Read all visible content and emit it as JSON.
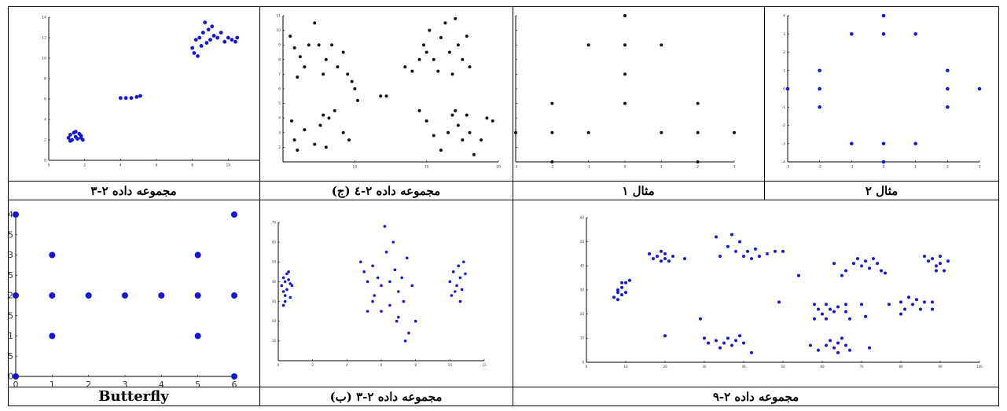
{
  "colors": {
    "blue": "#1515d8",
    "black": "#111111",
    "border": "#000000",
    "watermark": "#d9d9d9"
  },
  "captions": {
    "c1": "مجموعه داده ۲-۳",
    "c2": "مجموعه داده ۲-٤ (ج)",
    "c3": "مثال ۱",
    "c4": "مثال ۲",
    "c5": "Butterfly",
    "c6": "مجموعه داده ۲-۳ (ب)",
    "c7": "مجموعه داده ۲-۹"
  },
  "chart_data": [
    {
      "id": "ds23",
      "type": "scatter",
      "color": "blue",
      "xlim": [
        0,
        12
      ],
      "ylim": [
        0,
        14
      ],
      "xticks": [
        0,
        2,
        4,
        6,
        8,
        10,
        12
      ],
      "yticks": [
        0,
        2,
        4,
        6,
        8,
        10,
        12,
        14
      ],
      "points": [
        [
          1.1,
          2.2
        ],
        [
          1.2,
          2.5
        ],
        [
          1.3,
          2.0
        ],
        [
          1.4,
          2.7
        ],
        [
          1.5,
          2.3
        ],
        [
          1.6,
          2.1
        ],
        [
          1.7,
          2.6
        ],
        [
          1.8,
          2.2
        ],
        [
          1.9,
          2.0
        ],
        [
          1.2,
          1.9
        ],
        [
          1.5,
          2.8
        ],
        [
          1.8,
          2.4
        ],
        [
          4.0,
          6.1
        ],
        [
          4.3,
          6.1
        ],
        [
          4.6,
          6.1
        ],
        [
          4.9,
          6.2
        ],
        [
          5.1,
          6.3
        ],
        [
          8.0,
          11.0
        ],
        [
          8.1,
          10.5
        ],
        [
          8.2,
          11.8
        ],
        [
          8.3,
          10.2
        ],
        [
          8.4,
          12.0
        ],
        [
          8.5,
          11.2
        ],
        [
          8.6,
          12.5
        ],
        [
          8.7,
          13.5
        ],
        [
          8.8,
          11.5
        ],
        [
          8.9,
          12.8
        ],
        [
          9.0,
          11.8
        ],
        [
          9.2,
          12.2
        ],
        [
          9.4,
          12.0
        ],
        [
          9.6,
          12.5
        ],
        [
          9.8,
          11.6
        ],
        [
          10.0,
          12.0
        ],
        [
          10.2,
          11.8
        ],
        [
          10.4,
          11.6
        ],
        [
          10.5,
          12.0
        ],
        [
          9.1,
          13.1
        ]
      ]
    },
    {
      "id": "ds24c",
      "type": "scatter",
      "color": "black",
      "xlim": [
        5,
        20
      ],
      "ylim": [
        1,
        11
      ],
      "xticks": [
        10,
        15,
        20
      ],
      "yticks": [
        2,
        3,
        4,
        5,
        6,
        7,
        8,
        9,
        10,
        11
      ],
      "points": [
        [
          5.5,
          9.6
        ],
        [
          5.8,
          8.8
        ],
        [
          6.0,
          6.8
        ],
        [
          6.2,
          8.2
        ],
        [
          6.5,
          7.5
        ],
        [
          6.8,
          9.0
        ],
        [
          7.2,
          10.5
        ],
        [
          7.5,
          9.0
        ],
        [
          7.8,
          7.0
        ],
        [
          8.0,
          8.0
        ],
        [
          8.4,
          9.0
        ],
        [
          8.8,
          7.5
        ],
        [
          9.2,
          8.5
        ],
        [
          9.5,
          7.0
        ],
        [
          9.8,
          6.5
        ],
        [
          10.0,
          6.0
        ],
        [
          10.2,
          5.2
        ],
        [
          5.6,
          3.8
        ],
        [
          5.8,
          2.5
        ],
        [
          6.0,
          1.8
        ],
        [
          6.5,
          3.2
        ],
        [
          7.2,
          2.2
        ],
        [
          7.6,
          3.5
        ],
        [
          7.8,
          4.2
        ],
        [
          8.2,
          4.0
        ],
        [
          8.6,
          4.5
        ],
        [
          8.0,
          2.0
        ],
        [
          9.2,
          3.0
        ],
        [
          9.6,
          2.5
        ],
        [
          11.8,
          5.5
        ],
        [
          12.2,
          5.5
        ],
        [
          13.5,
          7.5
        ],
        [
          14.0,
          7.2
        ],
        [
          14.5,
          8.0
        ],
        [
          14.8,
          9.0
        ],
        [
          15.0,
          8.5
        ],
        [
          15.2,
          10.0
        ],
        [
          15.5,
          8.0
        ],
        [
          15.8,
          7.2
        ],
        [
          16.0,
          9.5
        ],
        [
          16.3,
          10.5
        ],
        [
          16.6,
          8.5
        ],
        [
          16.8,
          7.0
        ],
        [
          17.0,
          10.8
        ],
        [
          17.2,
          9.0
        ],
        [
          17.5,
          8.0
        ],
        [
          17.8,
          9.6
        ],
        [
          18.0,
          7.5
        ],
        [
          14.5,
          4.5
        ],
        [
          15.0,
          3.8
        ],
        [
          15.5,
          2.8
        ],
        [
          16.0,
          1.8
        ],
        [
          16.5,
          3.0
        ],
        [
          16.8,
          4.2
        ],
        [
          17.0,
          4.5
        ],
        [
          17.2,
          3.5
        ],
        [
          17.5,
          2.5
        ],
        [
          17.8,
          4.2
        ],
        [
          18.0,
          3.0
        ],
        [
          18.3,
          1.5
        ],
        [
          18.8,
          2.5
        ],
        [
          19.2,
          4.0
        ],
        [
          19.6,
          3.8
        ]
      ]
    },
    {
      "id": "ex1",
      "type": "scatter",
      "color": "black",
      "xlim": [
        -3,
        3
      ],
      "ylim": [
        -1,
        4
      ],
      "xticks": [
        -3,
        -2,
        -1,
        0,
        1,
        2,
        3
      ],
      "yticks": [
        -1,
        -0.5,
        0,
        0.5,
        1,
        1.5,
        2,
        2.5,
        3,
        3.5,
        4
      ],
      "points": [
        [
          -3,
          0
        ],
        [
          -2,
          0
        ],
        [
          -1,
          0
        ],
        [
          1,
          0
        ],
        [
          2,
          0
        ],
        [
          3,
          0
        ],
        [
          -2,
          1
        ],
        [
          2,
          1
        ],
        [
          0,
          1
        ],
        [
          0,
          2
        ],
        [
          0,
          3
        ],
        [
          -1,
          3
        ],
        [
          1,
          3
        ],
        [
          0,
          4
        ],
        [
          -2,
          -1
        ],
        [
          2,
          -1
        ]
      ]
    },
    {
      "id": "ex2",
      "type": "scatter",
      "color": "blue",
      "xlim": [
        -3,
        3
      ],
      "ylim": [
        -4,
        4
      ],
      "xticks": [
        -3,
        -2,
        -1,
        0,
        1,
        2,
        3
      ],
      "yticks": [
        -4,
        -3,
        -2,
        -1,
        0,
        1,
        2,
        3,
        4
      ],
      "points": [
        [
          -3,
          0
        ],
        [
          -2,
          1
        ],
        [
          -2,
          0
        ],
        [
          -2,
          -1
        ],
        [
          -1,
          3
        ],
        [
          0,
          3
        ],
        [
          1,
          3
        ],
        [
          0,
          4
        ],
        [
          2,
          1
        ],
        [
          2,
          0
        ],
        [
          2,
          -1
        ],
        [
          3,
          0
        ],
        [
          -1,
          -3
        ],
        [
          0,
          -3
        ],
        [
          1,
          -3
        ],
        [
          0,
          -4
        ]
      ]
    },
    {
      "id": "butterfly",
      "type": "scatter",
      "color": "blue",
      "xlim": [
        0,
        6
      ],
      "ylim": [
        0,
        4
      ],
      "xticks": [
        0,
        1,
        2,
        3,
        4,
        5,
        6
      ],
      "yticks": [
        0,
        0.5,
        1,
        1.5,
        2,
        2.5,
        3,
        3.5,
        4
      ],
      "ytick_labels": [
        "0",
        "0.5",
        "1",
        "1.5",
        "2",
        "2.5",
        "3",
        "3.5",
        "4"
      ],
      "points": [
        [
          0,
          4
        ],
        [
          0,
          2
        ],
        [
          0,
          0
        ],
        [
          1,
          3
        ],
        [
          1,
          2
        ],
        [
          1,
          1
        ],
        [
          2,
          2
        ],
        [
          3,
          2
        ],
        [
          4,
          2
        ],
        [
          5,
          3
        ],
        [
          5,
          2
        ],
        [
          5,
          1
        ],
        [
          6,
          4
        ],
        [
          6,
          2
        ],
        [
          6,
          0
        ]
      ]
    },
    {
      "id": "ds23b",
      "type": "scatter",
      "color": "blue",
      "xlim": [
        0,
        12
      ],
      "ylim": [
        0,
        70
      ],
      "xticks": [
        0,
        2,
        4,
        6,
        8,
        10,
        12
      ],
      "yticks": [
        10,
        20,
        30,
        40,
        50,
        60,
        70
      ],
      "points": [
        [
          0.2,
          38
        ],
        [
          0.3,
          42
        ],
        [
          0.3,
          35
        ],
        [
          0.4,
          40
        ],
        [
          0.5,
          44
        ],
        [
          0.4,
          30
        ],
        [
          0.6,
          41
        ],
        [
          0.5,
          36
        ],
        [
          0.7,
          39
        ],
        [
          0.4,
          33
        ],
        [
          0.6,
          45
        ],
        [
          0.8,
          38
        ],
        [
          0.3,
          28
        ],
        [
          0.7,
          32
        ],
        [
          4.8,
          50
        ],
        [
          5.0,
          45
        ],
        [
          5.2,
          40
        ],
        [
          5.5,
          48
        ],
        [
          5.8,
          42
        ],
        [
          6.0,
          38
        ],
        [
          6.3,
          55
        ],
        [
          6.5,
          40
        ],
        [
          6.8,
          46
        ],
        [
          7.0,
          35
        ],
        [
          7.2,
          42
        ],
        [
          7.5,
          52
        ],
        [
          7.8,
          38
        ],
        [
          5.5,
          30
        ],
        [
          6.0,
          25
        ],
        [
          6.5,
          28
        ],
        [
          7.0,
          22
        ],
        [
          7.3,
          30
        ],
        [
          8.0,
          20
        ],
        [
          6.2,
          68
        ],
        [
          5.6,
          33
        ],
        [
          6.9,
          20
        ],
        [
          7.6,
          14
        ],
        [
          5.2,
          25
        ],
        [
          6.7,
          60
        ],
        [
          7.4,
          10
        ]
      ],
      "points2": [
        [
          10.0,
          40
        ],
        [
          10.2,
          45
        ],
        [
          10.4,
          38
        ],
        [
          10.6,
          42
        ],
        [
          10.8,
          50
        ],
        [
          10.3,
          35
        ],
        [
          10.5,
          48
        ],
        [
          10.7,
          36
        ],
        [
          10.9,
          44
        ],
        [
          10.1,
          33
        ],
        [
          10.6,
          30
        ]
      ]
    },
    {
      "id": "ds29",
      "type": "scatter",
      "color": "blue",
      "xlim": [
        0,
        100
      ],
      "ylim": [
        0,
        60
      ],
      "xticks": [
        0,
        10,
        20,
        30,
        40,
        50,
        60,
        70,
        80,
        90,
        100
      ],
      "yticks": [
        0,
        10,
        20,
        30,
        40,
        50,
        60
      ],
      "points": [
        [
          7,
          27
        ],
        [
          8,
          30
        ],
        [
          8,
          26
        ],
        [
          9,
          31
        ],
        [
          9,
          28
        ],
        [
          10,
          33
        ],
        [
          10,
          29
        ],
        [
          11,
          34
        ],
        [
          9,
          33
        ],
        [
          8,
          29
        ],
        [
          16,
          45
        ],
        [
          17,
          43
        ],
        [
          18,
          44
        ],
        [
          19,
          46
        ],
        [
          20,
          43
        ],
        [
          20,
          45
        ],
        [
          21,
          42
        ],
        [
          22,
          44
        ],
        [
          19,
          42
        ],
        [
          25,
          43
        ],
        [
          33,
          52
        ],
        [
          34,
          44
        ],
        [
          36,
          48
        ],
        [
          37,
          53
        ],
        [
          38,
          46
        ],
        [
          39,
          50
        ],
        [
          40,
          44
        ],
        [
          41,
          46
        ],
        [
          42,
          43
        ],
        [
          43,
          47
        ],
        [
          44,
          44
        ],
        [
          46,
          45
        ],
        [
          48,
          46
        ],
        [
          50,
          46
        ],
        [
          54,
          36
        ],
        [
          29,
          18
        ],
        [
          30,
          10
        ],
        [
          31,
          8
        ],
        [
          33,
          9
        ],
        [
          34,
          6
        ],
        [
          35,
          8
        ],
        [
          36,
          10
        ],
        [
          37,
          7
        ],
        [
          38,
          9
        ],
        [
          39,
          11
        ],
        [
          40,
          8
        ],
        [
          42,
          4
        ],
        [
          20,
          11
        ],
        [
          49,
          25
        ],
        [
          58,
          24
        ],
        [
          59,
          22
        ],
        [
          60,
          20
        ],
        [
          61,
          24
        ],
        [
          62,
          22
        ],
        [
          63,
          21
        ],
        [
          61,
          18
        ],
        [
          66,
          24
        ],
        [
          67,
          18
        ],
        [
          66,
          21
        ],
        [
          70,
          24
        ],
        [
          71,
          19
        ],
        [
          58,
          18
        ],
        [
          64,
          23
        ],
        [
          63,
          41
        ],
        [
          66,
          38
        ],
        [
          68,
          41
        ],
        [
          69,
          43
        ],
        [
          70,
          40
        ],
        [
          71,
          42
        ],
        [
          72,
          39
        ],
        [
          73,
          43
        ],
        [
          74,
          41
        ],
        [
          75,
          38
        ],
        [
          76,
          37
        ],
        [
          65,
          36
        ],
        [
          77,
          24
        ],
        [
          80,
          25
        ],
        [
          81,
          22
        ],
        [
          82,
          27
        ],
        [
          83,
          24
        ],
        [
          84,
          26
        ],
        [
          85,
          22
        ],
        [
          86,
          25
        ],
        [
          88,
          22
        ],
        [
          88,
          25
        ],
        [
          80,
          20
        ],
        [
          86,
          44
        ],
        [
          87,
          42
        ],
        [
          88,
          43
        ],
        [
          89,
          40
        ],
        [
          90,
          41
        ],
        [
          91,
          38
        ],
        [
          92,
          42
        ],
        [
          90,
          44
        ],
        [
          89,
          38
        ],
        [
          57,
          7
        ],
        [
          59,
          5
        ],
        [
          61,
          7
        ],
        [
          62,
          9
        ],
        [
          63,
          6
        ],
        [
          64,
          8
        ],
        [
          65,
          10
        ],
        [
          66,
          7
        ],
        [
          67,
          5
        ],
        [
          64,
          4
        ],
        [
          72,
          6
        ]
      ]
    }
  ]
}
